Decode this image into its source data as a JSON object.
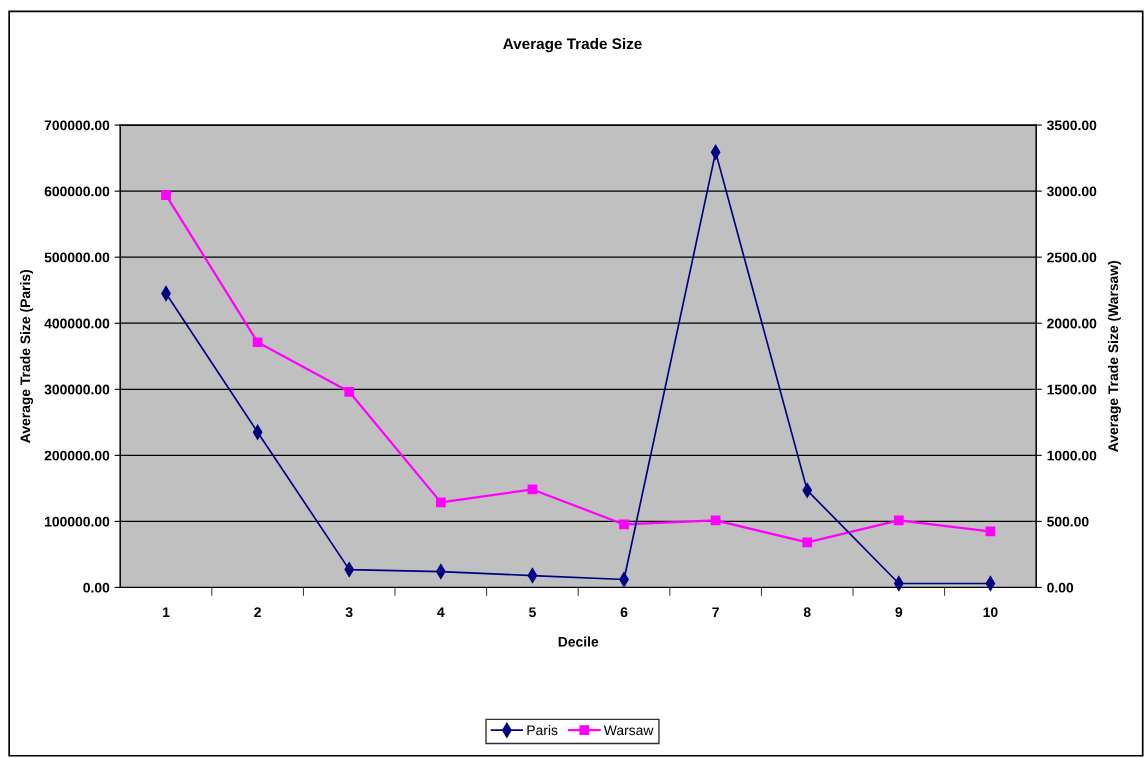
{
  "chart_data": {
    "type": "line",
    "title": "Average Trade Size",
    "xlabel": "Decile",
    "ylabel": "Average Trade Size (Paris)",
    "y2label": "Average Trade Size (Warsaw)",
    "categories": [
      "1",
      "2",
      "3",
      "4",
      "5",
      "6",
      "7",
      "8",
      "9",
      "10"
    ],
    "series": [
      {
        "name": "Paris",
        "color": "#000080",
        "marker": "diamond",
        "values": [
          445000,
          235000,
          27000,
          24000,
          18000,
          12000,
          659000,
          147000,
          6000,
          6000
        ]
      },
      {
        "name": "Warsaw",
        "color": "#ff00ff",
        "marker": "square",
        "axis": "y2",
        "values": [
          2970,
          1856,
          1481,
          644,
          742,
          477,
          508,
          341,
          508,
          424
        ]
      }
    ],
    "ylim": [
      0,
      700000
    ],
    "yticks": [
      {
        "value": 0,
        "label": "0.00"
      },
      {
        "value": 100000,
        "label": "100000.00"
      },
      {
        "value": 200000,
        "label": "200000.00"
      },
      {
        "value": 300000,
        "label": "300000.00"
      },
      {
        "value": 400000,
        "label": "400000.00"
      },
      {
        "value": 500000,
        "label": "500000.00"
      },
      {
        "value": 600000,
        "label": "600000.00"
      },
      {
        "value": 700000,
        "label": "700000.00"
      }
    ],
    "y2lim": [
      0,
      3500
    ],
    "y2ticks": [
      {
        "value": 0,
        "label": "0.00"
      },
      {
        "value": 500,
        "label": "500.00"
      },
      {
        "value": 1000,
        "label": "1000.00"
      },
      {
        "value": 1500,
        "label": "1500.00"
      },
      {
        "value": 2000,
        "label": "2000.00"
      },
      {
        "value": 2500,
        "label": "2500.00"
      },
      {
        "value": 3000,
        "label": "3000.00"
      },
      {
        "value": 3500,
        "label": "3500.00"
      }
    ],
    "grid": "y",
    "legend": "bottom",
    "line_style": "solid"
  }
}
